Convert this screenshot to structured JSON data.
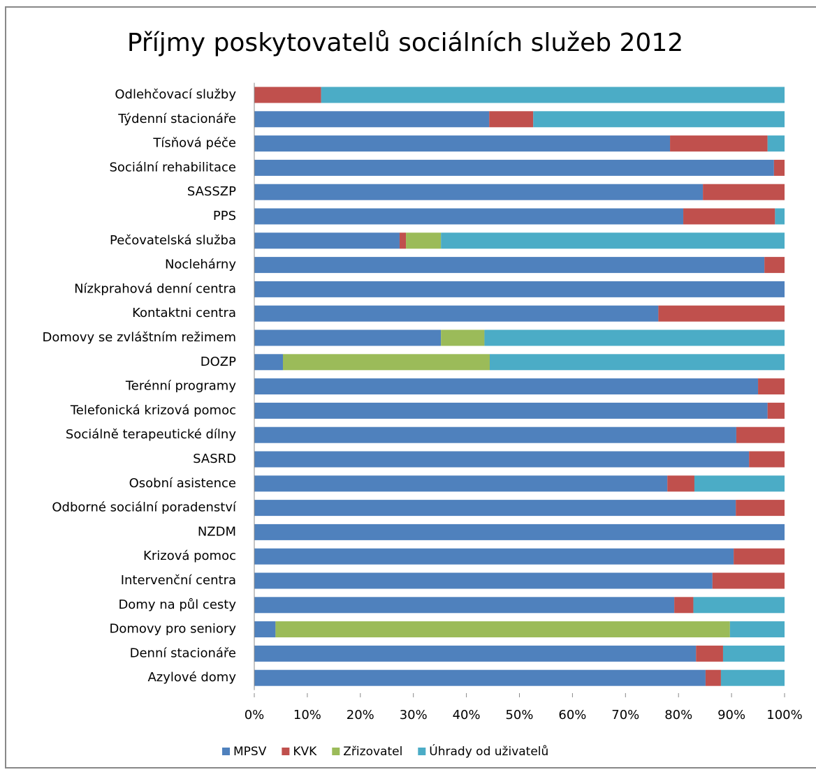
{
  "chart_data": {
    "type": "stacked_barh",
    "title": "Příjmy poskytovatelů sociálních služeb 2012",
    "categories": [
      "Odlehčovací služby",
      "Týdenní stacionáře",
      "Tísňová péče",
      "Sociální rehabilitace",
      "SASSZP",
      "PPS",
      "Pečovatelská služba",
      "Noclehárny",
      "Nízkprahová denní centra",
      "Kontaktni centra",
      "Domovy se zvláštním režimem",
      "DOZP",
      "Terénní programy",
      "Telefonická krizová pomoc",
      "Sociálně terapeutické dílny",
      "SASRD",
      "Osobní asistence",
      "Odborné sociální poradenství",
      "NZDM",
      "Krizová pomoc",
      "Intervenční centra",
      "Domy na půl cesty",
      "Domovy pro seniory",
      "Denní stacionáře",
      "Azylové domy"
    ],
    "series": [
      {
        "name": "MPSV",
        "color": "#4f81bd",
        "values": [
          0,
          44.3,
          78.4,
          98.0,
          84.6,
          80.9,
          27.4,
          96.2,
          100,
          76.2,
          35.2,
          5.4,
          95.0,
          96.8,
          90.9,
          93.3,
          77.9,
          90.8,
          100,
          90.4,
          86.4,
          79.2,
          4.0,
          83.3,
          85.1
        ]
      },
      {
        "name": "KVK",
        "color": "#c0504d",
        "values": [
          12.6,
          8.3,
          18.4,
          2.0,
          15.4,
          17.3,
          1.2,
          3.8,
          0,
          23.8,
          0,
          0,
          5.0,
          3.2,
          9.1,
          6.7,
          5.1,
          9.2,
          0,
          9.6,
          13.6,
          3.6,
          0,
          5.1,
          2.9
        ]
      },
      {
        "name": "Zřizovatel",
        "color": "#9bbb59",
        "values": [
          0,
          0,
          0,
          0,
          0,
          0,
          6.6,
          0,
          0,
          0,
          8.2,
          39.0,
          0,
          0,
          0,
          0,
          0,
          0,
          0,
          0,
          0,
          0,
          85.7,
          0,
          0
        ]
      },
      {
        "name": "Úhrady od uživatelů",
        "color": "#4bacc6",
        "values": [
          87.4,
          47.4,
          3.2,
          0,
          0,
          1.8,
          64.8,
          0,
          0,
          0,
          56.6,
          55.6,
          0,
          0,
          0,
          0,
          17.0,
          0,
          0,
          0,
          0,
          17.2,
          10.3,
          11.6,
          12.0
        ]
      }
    ],
    "xlim": [
      0,
      100
    ],
    "xticks": [
      {
        "value": 0,
        "label": "0%"
      },
      {
        "value": 10,
        "label": "10%"
      },
      {
        "value": 20,
        "label": "20%"
      },
      {
        "value": 30,
        "label": "30%"
      },
      {
        "value": 40,
        "label": "40%"
      },
      {
        "value": 50,
        "label": "50%"
      },
      {
        "value": 60,
        "label": "60%"
      },
      {
        "value": 70,
        "label": "70%"
      },
      {
        "value": 80,
        "label": "80%"
      },
      {
        "value": 90,
        "label": "90%"
      },
      {
        "value": 100,
        "label": "100%"
      }
    ],
    "legend": "bottom"
  }
}
